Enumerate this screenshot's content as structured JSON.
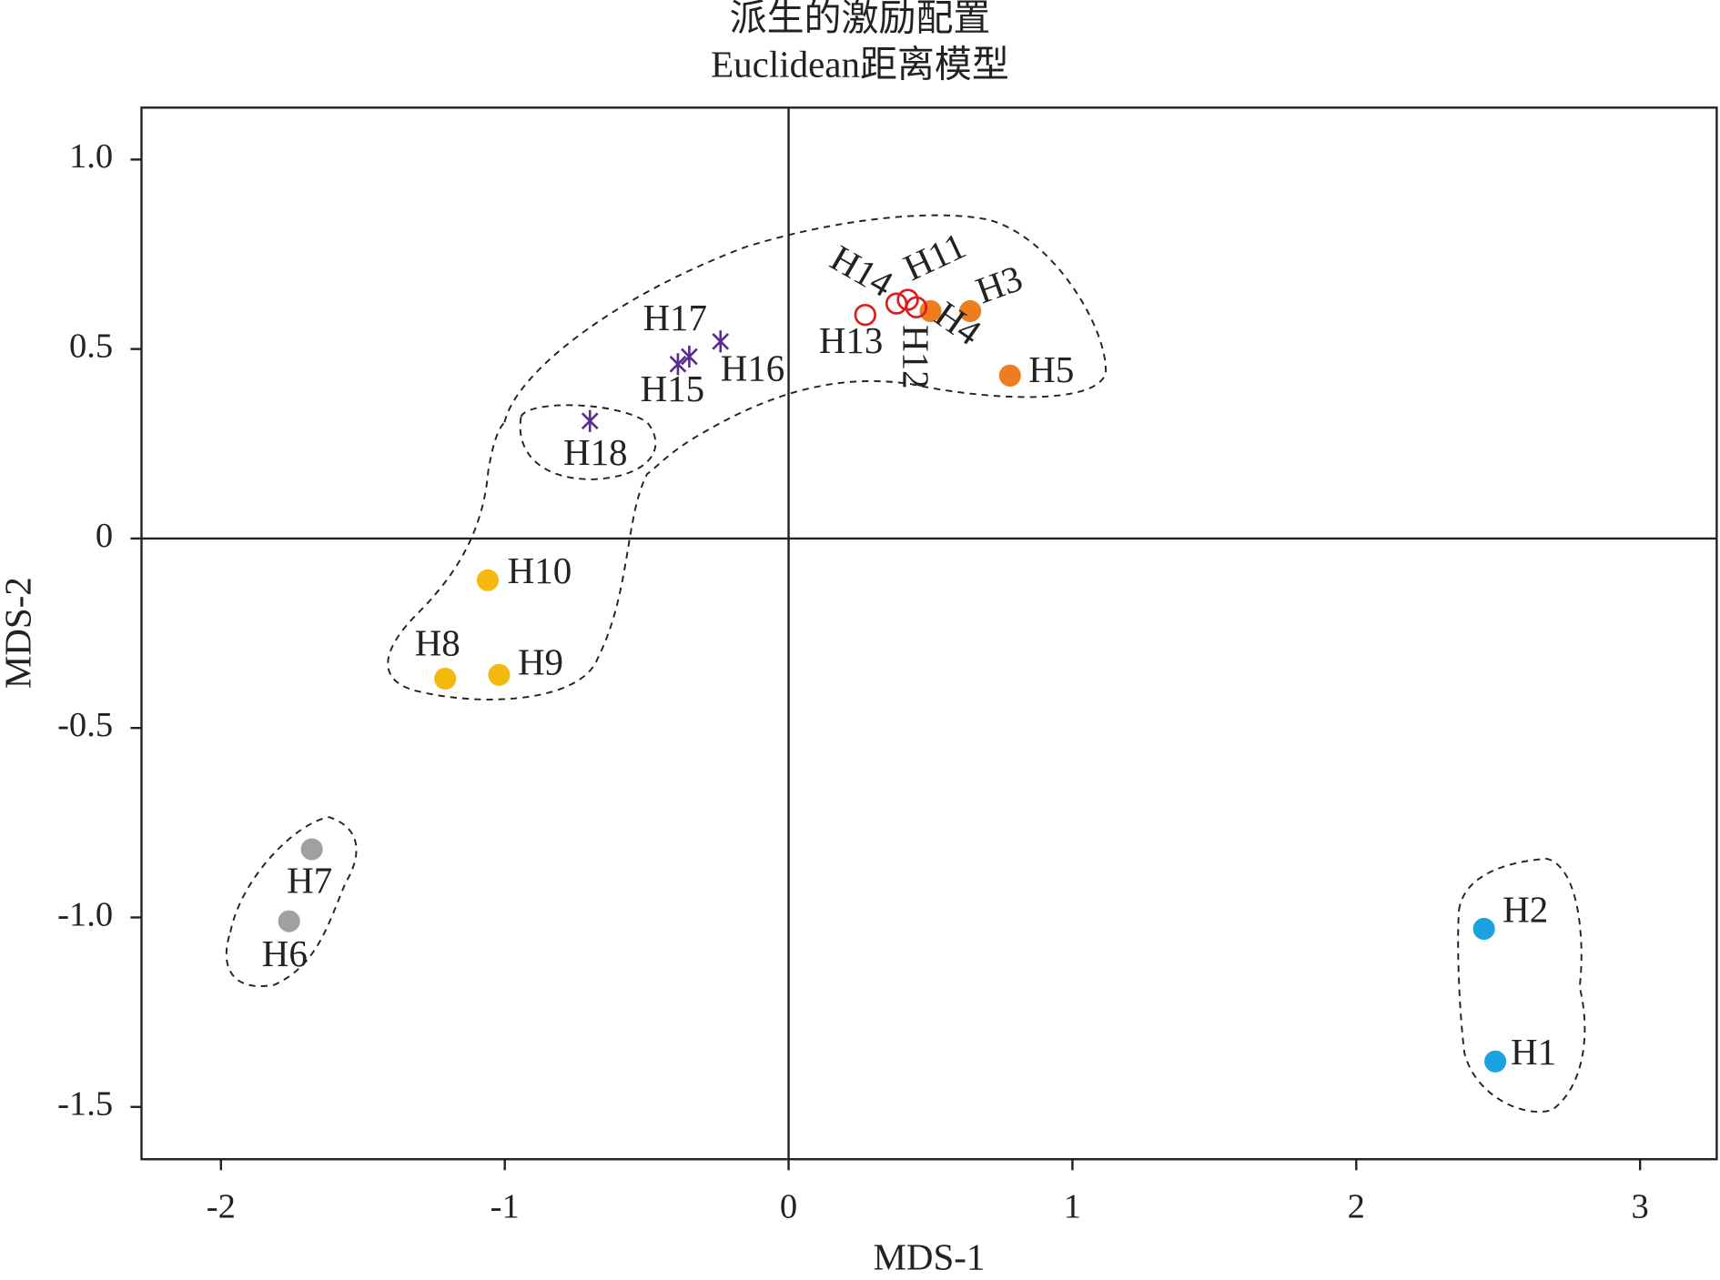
{
  "chart_data": {
    "type": "scatter",
    "title": "派生的激励配置",
    "subtitle": "Euclidean距离模型",
    "x_label": "MDS-1",
    "y_label": "MDS-2",
    "xlim": [
      -2.28,
      3.27
    ],
    "ylim": [
      -1.638,
      1.137
    ],
    "xticks": [
      -2,
      -1,
      0,
      1,
      2,
      3
    ],
    "yticks": [
      {
        "value": 1.0,
        "label": "1.0"
      },
      0.5,
      0,
      -0.5,
      {
        "value": -1.0,
        "label": "-1.0"
      },
      -1.5
    ],
    "series": [
      {
        "color": "#1aa3e0",
        "marker": "filled",
        "labels": [
          "H1",
          "H2"
        ],
        "x": [
          2.49,
          2.45
        ],
        "values": [
          -1.38,
          -1.03
        ]
      },
      {
        "color": "#ee7d20",
        "marker": "filled",
        "labels": [
          "H3",
          "H4",
          "H5"
        ],
        "x": [
          0.64,
          0.5,
          0.78
        ],
        "values": [
          0.6,
          0.6,
          0.43
        ]
      },
      {
        "color": "#a0a0a0",
        "marker": "filled",
        "labels": [
          "H6",
          "H7"
        ],
        "x": [
          -1.76,
          -1.68
        ],
        "values": [
          -1.01,
          -0.82
        ]
      },
      {
        "color": "#f5b80e",
        "marker": "filled",
        "labels": [
          "H8",
          "H9",
          "H10"
        ],
        "x": [
          -1.21,
          -1.02,
          -1.06
        ],
        "values": [
          -0.37,
          -0.36,
          -0.11
        ]
      },
      {
        "color": "#e01a1a",
        "marker": "open",
        "labels": [
          "H11",
          "H12",
          "H13",
          "H14"
        ],
        "x": [
          0.42,
          0.45,
          0.27,
          0.38
        ],
        "values": [
          0.63,
          0.61,
          0.59,
          0.62
        ]
      },
      {
        "color": "#5a2d91",
        "marker": "asterisk",
        "labels": [
          "H15",
          "H16",
          "H17",
          "H18"
        ],
        "x": [
          -0.39,
          -0.24,
          -0.35,
          -0.7
        ],
        "values": [
          0.46,
          0.52,
          0.48,
          0.31
        ]
      }
    ]
  }
}
